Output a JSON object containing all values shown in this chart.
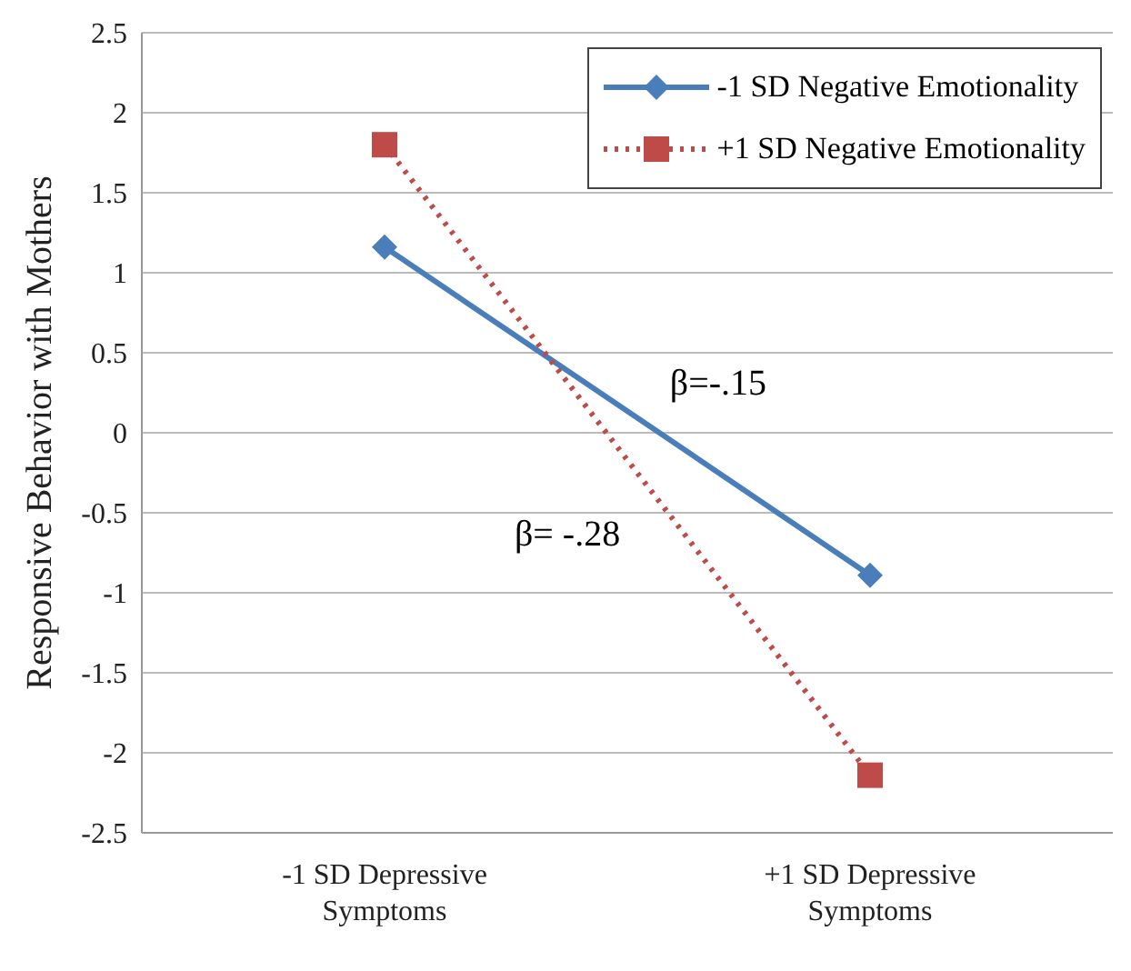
{
  "chart_data": {
    "type": "line",
    "ylabel": "Responsive Behavior with Mothers",
    "categories": [
      "-1 SD Depressive Symptoms",
      "+1 SD Depressive Symptoms"
    ],
    "series": [
      {
        "name": "-1 SD Negative Emotionality",
        "color": "#4a7ebb",
        "values": [
          1.16,
          -0.89
        ],
        "marker": "diamond",
        "line_style": "solid"
      },
      {
        "name": "+1 SD Negative Emotionality",
        "color": "#be4b48",
        "values": [
          1.8,
          -2.14
        ],
        "marker": "square",
        "line_style": "dotted"
      }
    ],
    "ylim": [
      -2.5,
      2.5
    ],
    "yticks": [
      -2.5,
      -2,
      -1.5,
      -1,
      -0.5,
      0,
      0.5,
      1,
      1.5,
      2,
      2.5
    ],
    "grid": "y",
    "legend": "top right",
    "annotations": [
      "β=-.15",
      "β= -.28"
    ]
  }
}
